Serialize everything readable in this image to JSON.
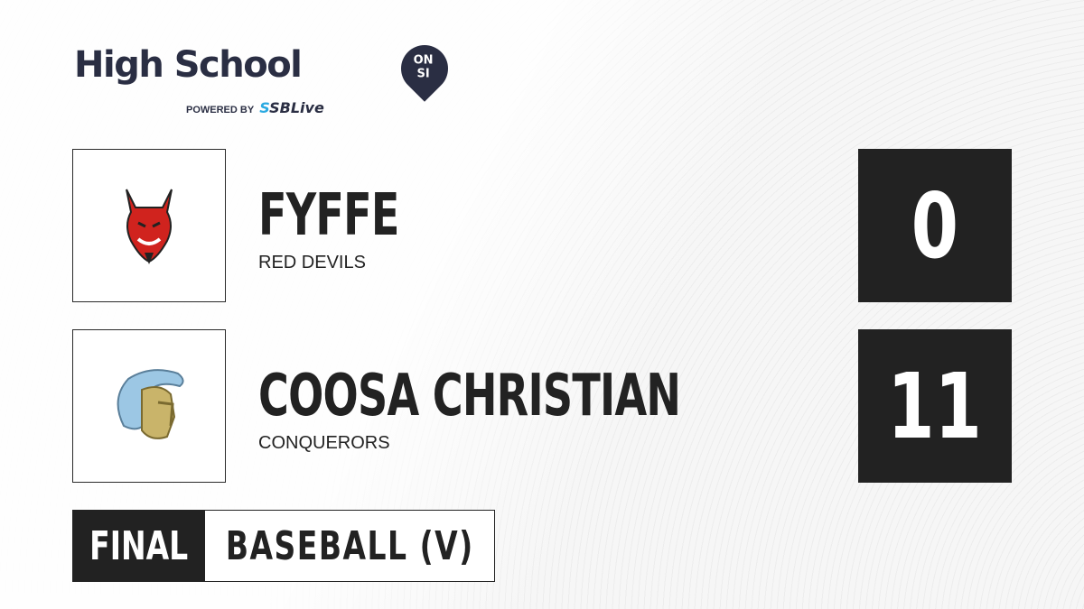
{
  "brand": {
    "title": "High School",
    "badge_top": "ON",
    "badge_bottom": "SI",
    "powered_by": "POWERED BY",
    "partner_prefix": "S",
    "partner": "SBLive"
  },
  "teams": [
    {
      "name": "FYFFE",
      "mascot": "RED DEVILS",
      "score": "0",
      "logo_icon": "red-devil-icon"
    },
    {
      "name": "COOSA CHRISTIAN",
      "mascot": "CONQUERORS",
      "score": "11",
      "logo_icon": "trojan-helmet-icon"
    }
  ],
  "status": "FINAL",
  "sport": "BASEBALL (V)",
  "colors": {
    "dark": "#222222",
    "brand": "#2a2e43",
    "accent": "#29a9e1"
  }
}
